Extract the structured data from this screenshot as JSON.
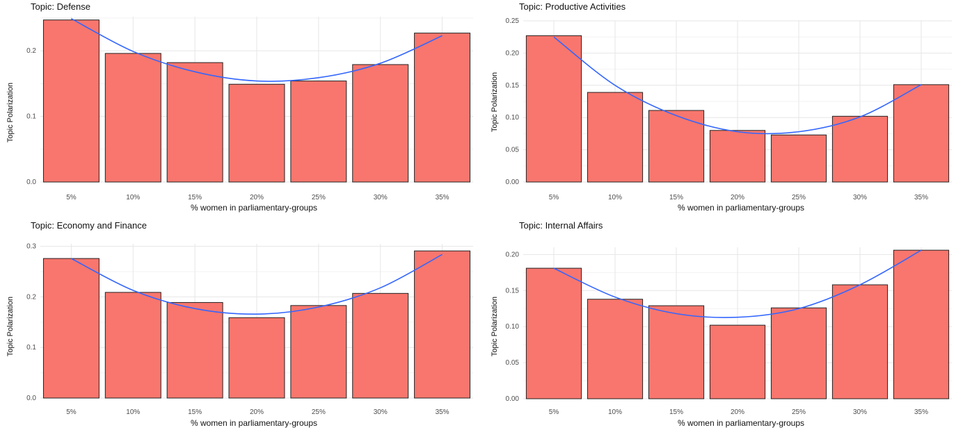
{
  "chart_data": [
    {
      "type": "bar",
      "title": "Topic: Defense",
      "xlabel": "% women in parliamentary-groups",
      "ylabel": "Topic Polarization",
      "categories": [
        "5%",
        "10%",
        "15%",
        "20%",
        "25%",
        "30%",
        "35%"
      ],
      "values": [
        0.247,
        0.196,
        0.182,
        0.149,
        0.154,
        0.179,
        0.227
      ],
      "trend": [
        0.249,
        0.199,
        0.168,
        0.154,
        0.159,
        0.181,
        0.223
      ],
      "ylim": [
        0,
        0.252
      ],
      "yticks": [
        0.0,
        0.1,
        0.2
      ],
      "ytick_labels": [
        "0.0",
        "0.1",
        "0.2"
      ],
      "grid": true
    },
    {
      "type": "bar",
      "title": "Topic: Productive Activities",
      "xlabel": "% women in parliamentary-groups",
      "ylabel": "Topic Polarization",
      "categories": [
        "5%",
        "10%",
        "15%",
        "20%",
        "25%",
        "30%",
        "35%"
      ],
      "values": [
        0.227,
        0.139,
        0.111,
        0.08,
        0.073,
        0.102,
        0.151
      ],
      "trend": [
        0.225,
        0.15,
        0.103,
        0.078,
        0.078,
        0.101,
        0.151
      ],
      "ylim": [
        0,
        0.25
      ],
      "yticks": [
        0.0,
        0.05,
        0.1,
        0.15,
        0.2,
        0.25
      ],
      "ytick_labels": [
        "0.00",
        "0.05",
        "0.10",
        "0.15",
        "0.20",
        "0.25"
      ],
      "grid": true
    },
    {
      "type": "bar",
      "title": "Topic: Economy and Finance",
      "xlabel": "% women in parliamentary-groups",
      "ylabel": "Topic Polarization",
      "categories": [
        "5%",
        "10%",
        "15%",
        "20%",
        "25%",
        "30%",
        "35%"
      ],
      "values": [
        0.276,
        0.209,
        0.189,
        0.159,
        0.183,
        0.207,
        0.291
      ],
      "trend": [
        0.276,
        0.213,
        0.177,
        0.166,
        0.18,
        0.218,
        0.284
      ],
      "ylim": [
        0,
        0.305
      ],
      "yticks": [
        0.0,
        0.1,
        0.2,
        0.3
      ],
      "ytick_labels": [
        "0.0",
        "0.1",
        "0.2",
        "0.3"
      ],
      "grid": true
    },
    {
      "type": "bar",
      "title": "Topic: Internal Affairs",
      "xlabel": "% women in parliamentary-groups",
      "ylabel": "Topic Polarization",
      "categories": [
        "5%",
        "10%",
        "15%",
        "20%",
        "25%",
        "30%",
        "35%"
      ],
      "values": [
        0.181,
        0.138,
        0.129,
        0.102,
        0.126,
        0.158,
        0.206
      ],
      "trend": [
        0.181,
        0.141,
        0.118,
        0.113,
        0.125,
        0.158,
        0.206
      ],
      "ylim": [
        0,
        0.21
      ],
      "yticks": [
        0.0,
        0.05,
        0.1,
        0.15,
        0.2
      ],
      "ytick_labels": [
        "0.00",
        "0.05",
        "0.10",
        "0.15",
        "0.20"
      ],
      "grid": true
    }
  ],
  "colors": {
    "bar_fill": "#f8766d",
    "bar_stroke": "#222222",
    "trend_line": "#3366ff",
    "grid_major": "#e6e6e6",
    "grid_minor": "#f3f3f3"
  }
}
